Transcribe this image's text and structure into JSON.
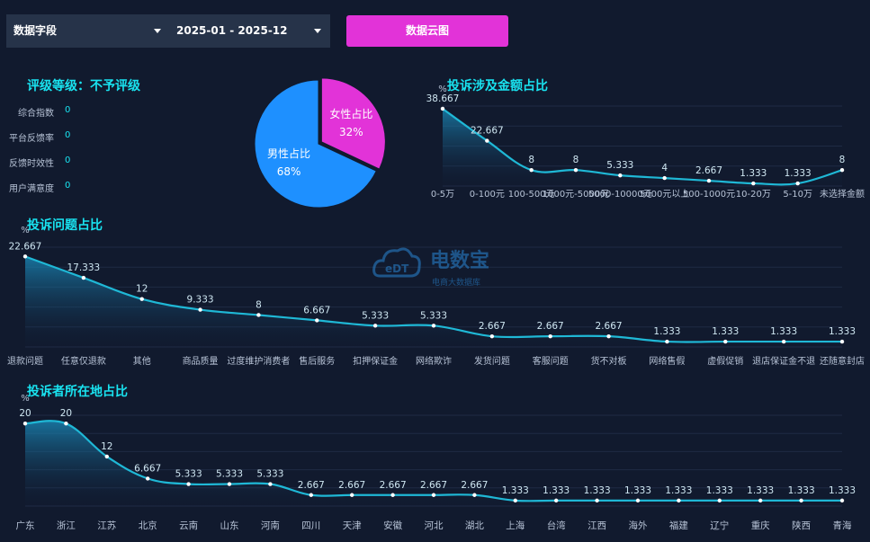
{
  "filters": {
    "field_label": "数据字段",
    "date_range": "2025-01 - 2025-12"
  },
  "button_label": "数据云图",
  "rating": {
    "label": "评级等级：",
    "value": "不予评级"
  },
  "metrics": [
    {
      "label": "综合指数",
      "value": "0"
    },
    {
      "label": "平台反馈率",
      "value": "0"
    },
    {
      "label": "反馈时效性",
      "value": "0"
    },
    {
      "label": "用户满意度",
      "value": "0"
    }
  ],
  "watermark": {
    "text": "电数宝",
    "sub": "电商大数据库",
    "logo": "eDT"
  },
  "colors": {
    "accent": "#19e3f0",
    "line": "#1fb8d6",
    "male": "#1e90ff",
    "female": "#e233d8",
    "button": "#e233d8"
  },
  "chart_data": [
    {
      "type": "pie",
      "title": "",
      "slices": [
        {
          "label": "男性占比",
          "value": 68,
          "value_label": "68%"
        },
        {
          "label": "女性占比",
          "value": 32,
          "value_label": "32%"
        }
      ]
    },
    {
      "type": "area",
      "title": "投诉涉及金额占比",
      "ylabel": "%",
      "ylim": [
        0,
        40
      ],
      "categories": [
        "0-5万",
        "0-100元",
        "100-500元",
        "1000元-5000元",
        "5000-10000元",
        "5000元以上",
        "500-1000元",
        "10-20万",
        "5-10万",
        "未选择金额"
      ],
      "values": [
        38.667,
        22.667,
        8,
        8,
        5.333,
        4,
        2.667,
        1.333,
        1.333,
        8
      ],
      "value_labels": [
        "38.667",
        "22.667",
        "8",
        "8",
        "5.333",
        "4",
        "2.667",
        "1.333",
        "1.333",
        "8"
      ]
    },
    {
      "type": "area",
      "title": "投诉问题占比",
      "ylabel": "%",
      "ylim": [
        0,
        25
      ],
      "categories": [
        "退款问题",
        "任意仅退款",
        "其他",
        "商品质量",
        "过度维护消费者",
        "售后服务",
        "扣押保证金",
        "网络欺诈",
        "发货问题",
        "客服问题",
        "货不对板",
        "网络售假",
        "虚假促销",
        "退店保证金不退",
        "还随意封店"
      ],
      "values": [
        22.667,
        17.333,
        12,
        9.333,
        8,
        6.667,
        5.333,
        5.333,
        2.667,
        2.667,
        2.667,
        1.333,
        1.333,
        1.333,
        1.333
      ],
      "value_labels": [
        "22.667",
        "17.333",
        "12",
        "9.333",
        "8",
        "6.667",
        "5.333",
        "5.333",
        "2.667",
        "2.667",
        "2.667",
        "1.333",
        "1.333",
        "1.333",
        "1.333"
      ]
    },
    {
      "type": "area",
      "title": "投诉者所在地占比",
      "ylabel": "%",
      "ylim": [
        0,
        22
      ],
      "categories": [
        "广东",
        "浙江",
        "江苏",
        "北京",
        "云南",
        "山东",
        "河南",
        "四川",
        "天津",
        "安徽",
        "河北",
        "湖北",
        "上海",
        "台湾",
        "江西",
        "海外",
        "福建",
        "辽宁",
        "重庆",
        "陕西",
        "青海"
      ],
      "values": [
        20,
        20,
        12,
        6.667,
        5.333,
        5.333,
        5.333,
        2.667,
        2.667,
        2.667,
        2.667,
        2.667,
        1.333,
        1.333,
        1.333,
        1.333,
        1.333,
        1.333,
        1.333,
        1.333,
        1.333
      ],
      "value_labels": [
        "20",
        "20",
        "12",
        "6.667",
        "5.333",
        "5.333",
        "5.333",
        "2.667",
        "2.667",
        "2.667",
        "2.667",
        "2.667",
        "1.333",
        "1.333",
        "1.333",
        "1.333",
        "1.333",
        "1.333",
        "1.333",
        "1.333",
        "1.333"
      ]
    }
  ]
}
